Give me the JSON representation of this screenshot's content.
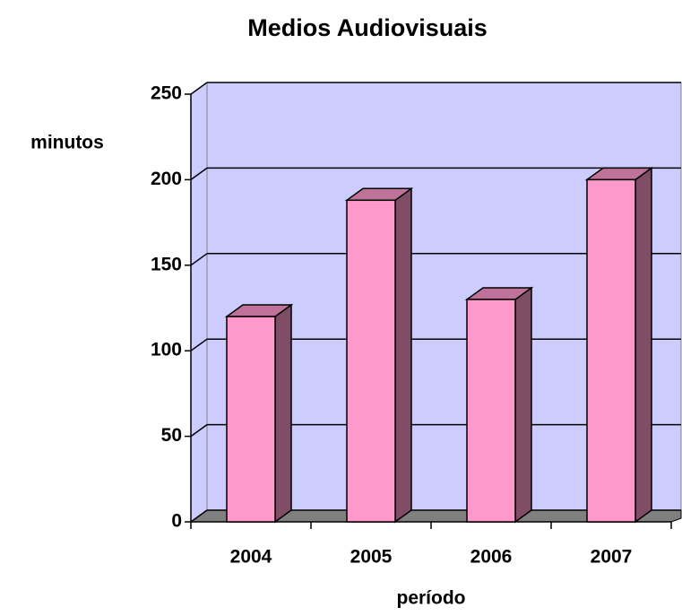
{
  "chart_data": {
    "type": "bar",
    "title": "Medios Audiovisuais",
    "y_label": "minutos",
    "x_label": "período",
    "categories": [
      "2004",
      "2005",
      "2006",
      "2007"
    ],
    "values": [
      120,
      188,
      130,
      200
    ],
    "color": "#ff99cc",
    "ylim": [
      0,
      250
    ],
    "yticks": [
      0,
      50,
      100,
      150,
      200,
      250
    ],
    "grid": true
  }
}
